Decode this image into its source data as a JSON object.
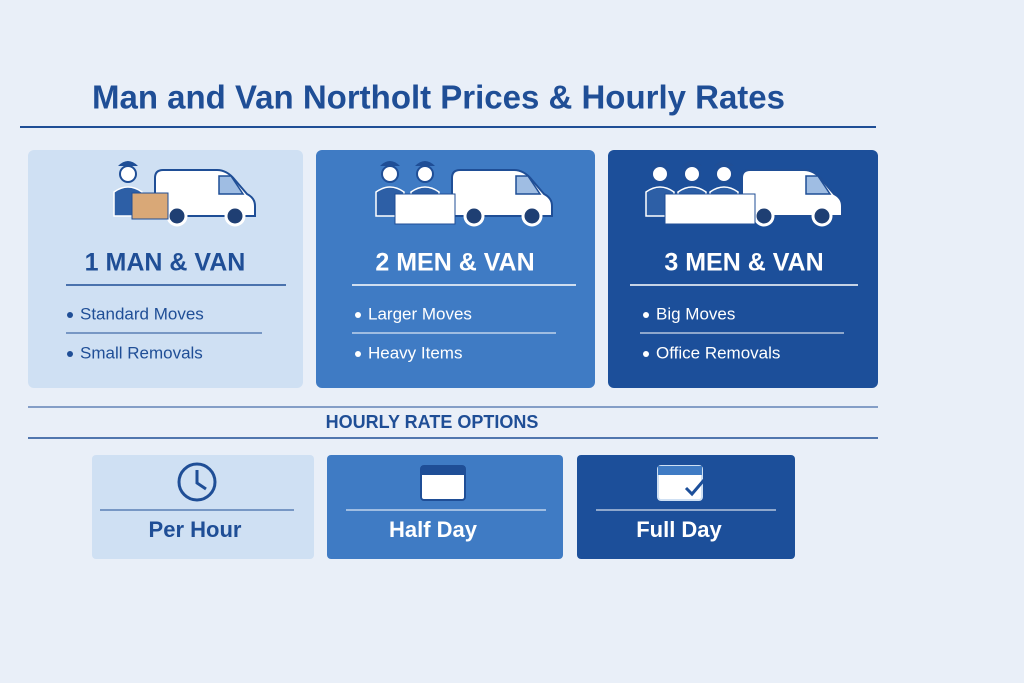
{
  "header": {
    "title": "Man and Van Northolt Prices & Hourly Rates"
  },
  "cards": [
    {
      "title": "1 MAN & VAN",
      "items": [
        "Standard Moves",
        "Small Removals"
      ]
    },
    {
      "title": "2 MEN & VAN",
      "items": [
        "Larger Moves",
        "Heavy Items"
      ]
    },
    {
      "title": "3 MEN & VAN",
      "items": [
        "Big Moves",
        "Office Removals"
      ]
    }
  ],
  "rates": {
    "heading": "HOURLY RATE OPTIONS",
    "options": [
      "Per Hour",
      "Half Day",
      "Full Day"
    ]
  }
}
